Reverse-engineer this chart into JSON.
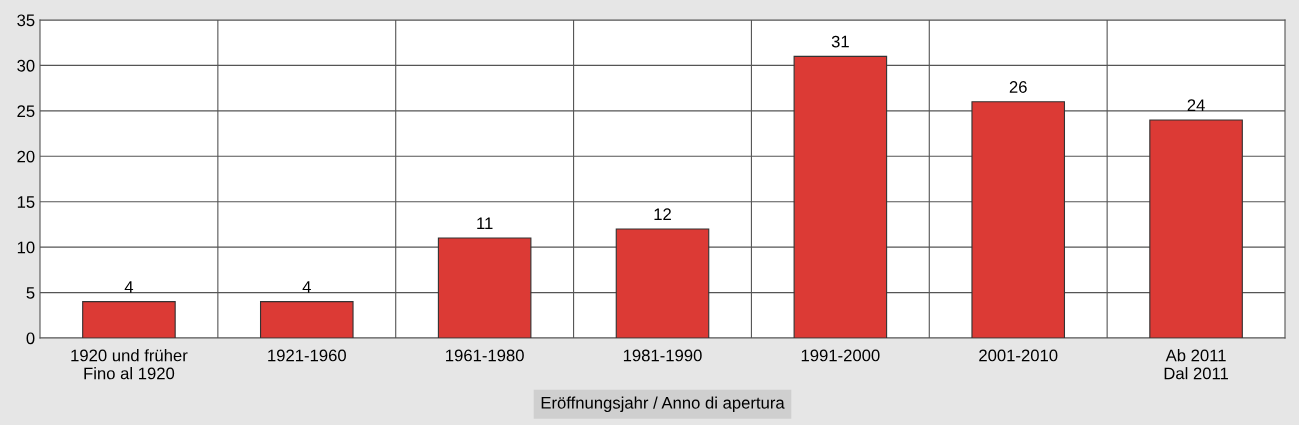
{
  "chart_data": {
    "type": "bar",
    "xlabel": "Eröffnungsjahr / Anno di apertura",
    "categories": [
      "1920 und früher\nFino al 1920",
      "1921-1960",
      "1961-1980",
      "1981-1990",
      "1991-2000",
      "2001-2010",
      "Ab 2011\nDal 2011"
    ],
    "values": [
      4,
      4,
      11,
      12,
      31,
      26,
      24
    ],
    "color": "#dc3a35",
    "ylim": [
      0,
      35
    ],
    "yticks": [
      0,
      5,
      10,
      15,
      20,
      25,
      30,
      35
    ],
    "grid": true,
    "data_labels": true
  }
}
